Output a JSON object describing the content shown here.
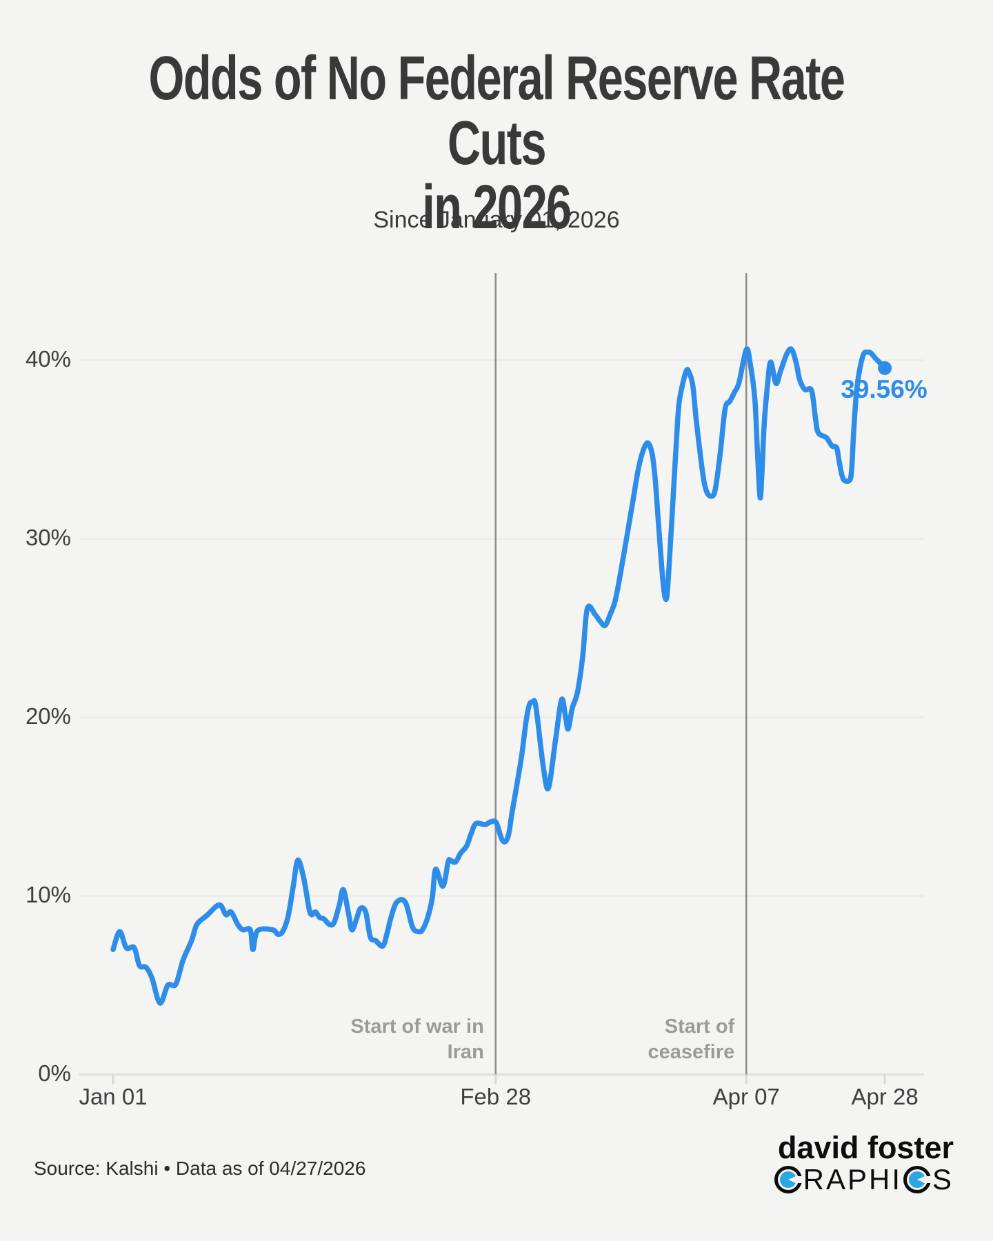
{
  "header": {
    "title_lines": [
      "Odds of No Federal Reserve Rate Cuts",
      "in 2026"
    ],
    "subtitle": "Since January 01, 2026"
  },
  "footer": {
    "source": "Source: Kalshi • Data as of 04/27/2026",
    "logo_line1": "david foster",
    "logo_line2": "GRAPHICS",
    "logo_line2_mid": "RAPHI",
    "logo_line2_end": "S"
  },
  "colors": {
    "background": "#f4f4f3",
    "line": "#2e8de9",
    "end_dot": "#2e8de9",
    "gridline": "#e9e9e8",
    "baseline": "#dededc",
    "tick": "#d8d8d6",
    "event_line": "#8c8c8c",
    "annotation_text": "#9b9b9b",
    "logo_blue": "#2aa7e0"
  },
  "chart_data": {
    "type": "line",
    "title": "Odds of No Federal Reserve Rate Cuts in 2026",
    "subtitle": "Since January 01, 2026",
    "unit": "%",
    "grid": "horizontal-only",
    "ylim": [
      0,
      45
    ],
    "y_ticks": [
      {
        "label": "0%",
        "value": 0
      },
      {
        "label": "10%",
        "value": 10
      },
      {
        "label": "20%",
        "value": 20
      },
      {
        "label": "30%",
        "value": 30
      },
      {
        "label": "40%",
        "value": 40
      }
    ],
    "x_ticks": [
      {
        "label": "Jan 01",
        "day": 0
      },
      {
        "label": "Feb 28",
        "day": 58
      },
      {
        "label": "Apr 07",
        "day": 96
      },
      {
        "label": "Apr 28",
        "day": 117
      }
    ],
    "annotations": [
      {
        "day": 58,
        "lines": [
          "Start of war in",
          "Iran"
        ]
      },
      {
        "day": 96,
        "lines": [
          "Start of",
          "ceasefire"
        ]
      }
    ],
    "end_label": "39.56%",
    "last_value": 39.56,
    "series": [
      {
        "color": "#2e8de9",
        "points": [
          [
            0,
            7.0
          ],
          [
            1,
            8.0
          ],
          [
            2,
            7.1
          ],
          [
            3.2,
            7.1
          ],
          [
            4,
            6.1
          ],
          [
            5,
            6.0
          ],
          [
            5.9,
            5.4
          ],
          [
            7.1,
            4.0
          ],
          [
            8.3,
            5.0
          ],
          [
            9.5,
            5.05
          ],
          [
            10.6,
            6.4
          ],
          [
            11.9,
            7.5
          ],
          [
            12.7,
            8.4
          ],
          [
            14.2,
            8.9
          ],
          [
            16.1,
            9.5
          ],
          [
            17.1,
            8.95
          ],
          [
            17.9,
            9.1
          ],
          [
            18.9,
            8.4
          ],
          [
            19.7,
            8.1
          ],
          [
            20.8,
            8.1
          ],
          [
            21.2,
            7.0
          ],
          [
            21.9,
            8.05
          ],
          [
            24.2,
            8.1
          ],
          [
            25,
            7.85
          ],
          [
            25.7,
            8.0
          ],
          [
            26.5,
            8.8
          ],
          [
            27.3,
            10.5
          ],
          [
            28,
            12.0
          ],
          [
            28.9,
            11.0
          ],
          [
            29.7,
            9.3
          ],
          [
            30.1,
            8.95
          ],
          [
            30.7,
            9.1
          ],
          [
            31.3,
            8.8
          ],
          [
            32,
            8.7
          ],
          [
            32.8,
            8.4
          ],
          [
            33.5,
            8.5
          ],
          [
            34.3,
            9.5
          ],
          [
            34.9,
            10.35
          ],
          [
            35.7,
            9.0
          ],
          [
            36.2,
            8.1
          ],
          [
            36.9,
            8.7
          ],
          [
            37.5,
            9.3
          ],
          [
            38.3,
            9.1
          ],
          [
            39,
            7.7
          ],
          [
            39.8,
            7.5
          ],
          [
            40.9,
            7.2
          ],
          [
            41.6,
            8.0
          ],
          [
            42.1,
            8.75
          ],
          [
            43,
            9.65
          ],
          [
            44.3,
            9.65
          ],
          [
            45.4,
            8.25
          ],
          [
            46.3,
            8.0
          ],
          [
            46.9,
            8.1
          ],
          [
            47.7,
            8.8
          ],
          [
            48.4,
            9.9
          ],
          [
            48.9,
            11.5
          ],
          [
            50,
            10.55
          ],
          [
            50.8,
            11.9
          ],
          [
            51.1,
            12.0
          ],
          [
            51.9,
            11.9
          ],
          [
            52.7,
            12.4
          ],
          [
            53.6,
            12.8
          ],
          [
            54.3,
            13.5
          ],
          [
            55,
            14.05
          ],
          [
            56.4,
            14.0
          ],
          [
            57.3,
            14.16
          ],
          [
            58.1,
            14.1
          ],
          [
            58.9,
            13.2
          ],
          [
            59.5,
            13.05
          ],
          [
            60,
            13.5
          ],
          [
            60.5,
            14.7
          ],
          [
            61.3,
            16.4
          ],
          [
            62,
            18.0
          ],
          [
            62.6,
            19.75
          ],
          [
            63.1,
            20.7
          ],
          [
            63.6,
            20.85
          ],
          [
            64.1,
            20.6
          ],
          [
            65.2,
            17.3
          ],
          [
            66,
            16.05
          ],
          [
            67.1,
            18.8
          ],
          [
            68,
            21.0
          ],
          [
            68.6,
            20.0
          ],
          [
            69,
            19.35
          ],
          [
            69.6,
            20.5
          ],
          [
            70.4,
            21.4
          ],
          [
            71.2,
            23.4
          ],
          [
            71.9,
            26.1
          ],
          [
            73.1,
            25.75
          ],
          [
            73.8,
            25.4
          ],
          [
            74.6,
            25.15
          ],
          [
            75.4,
            25.8
          ],
          [
            76.1,
            26.5
          ],
          [
            76.9,
            28.0
          ],
          [
            78.2,
            30.8
          ],
          [
            78.8,
            32.1
          ],
          [
            79.8,
            34.2
          ],
          [
            80.9,
            35.35
          ],
          [
            81.7,
            34.8
          ],
          [
            82.2,
            33.3
          ],
          [
            82.7,
            30.8
          ],
          [
            83.4,
            27.5
          ],
          [
            83.9,
            26.65
          ],
          [
            84.3,
            28.5
          ],
          [
            85,
            32.9
          ],
          [
            85.6,
            36.7
          ],
          [
            86,
            38.05
          ],
          [
            86.9,
            39.4
          ],
          [
            87.4,
            39.25
          ],
          [
            87.9,
            38.55
          ],
          [
            88.4,
            36.7
          ],
          [
            89.2,
            34.2
          ],
          [
            89.7,
            33.0
          ],
          [
            90.3,
            32.45
          ],
          [
            91.1,
            32.5
          ],
          [
            91.6,
            33.5
          ],
          [
            92.1,
            34.95
          ],
          [
            92.8,
            37.3
          ],
          [
            93.5,
            37.7
          ],
          [
            94.2,
            38.2
          ],
          [
            94.9,
            38.75
          ],
          [
            96,
            40.6
          ],
          [
            96.6,
            39.8
          ],
          [
            97.3,
            37.8
          ],
          [
            97.7,
            34.8
          ],
          [
            98.1,
            32.3
          ],
          [
            98.4,
            33.9
          ],
          [
            98.7,
            36.35
          ],
          [
            99.2,
            38.55
          ],
          [
            99.7,
            39.9
          ],
          [
            100.5,
            38.7
          ],
          [
            101.2,
            39.4
          ],
          [
            102.2,
            40.4
          ],
          [
            102.9,
            40.6
          ],
          [
            103.6,
            39.8
          ],
          [
            104.1,
            38.9
          ],
          [
            104.9,
            38.35
          ],
          [
            105.9,
            38.3
          ],
          [
            106.5,
            36.7
          ],
          [
            106.9,
            35.95
          ],
          [
            108,
            35.7
          ],
          [
            108.3,
            35.6
          ],
          [
            109,
            35.2
          ],
          [
            109.7,
            35.1
          ],
          [
            110.1,
            34.3
          ],
          [
            110.7,
            33.35
          ],
          [
            111.7,
            33.3
          ],
          [
            112,
            34.05
          ],
          [
            112.3,
            36.1
          ],
          [
            112.7,
            38.2
          ],
          [
            113.2,
            39.5
          ],
          [
            113.8,
            40.35
          ],
          [
            114.4,
            40.45
          ],
          [
            114.9,
            40.4
          ],
          [
            115.6,
            40.1
          ],
          [
            116.4,
            39.8
          ],
          [
            117,
            39.56
          ]
        ]
      }
    ]
  }
}
